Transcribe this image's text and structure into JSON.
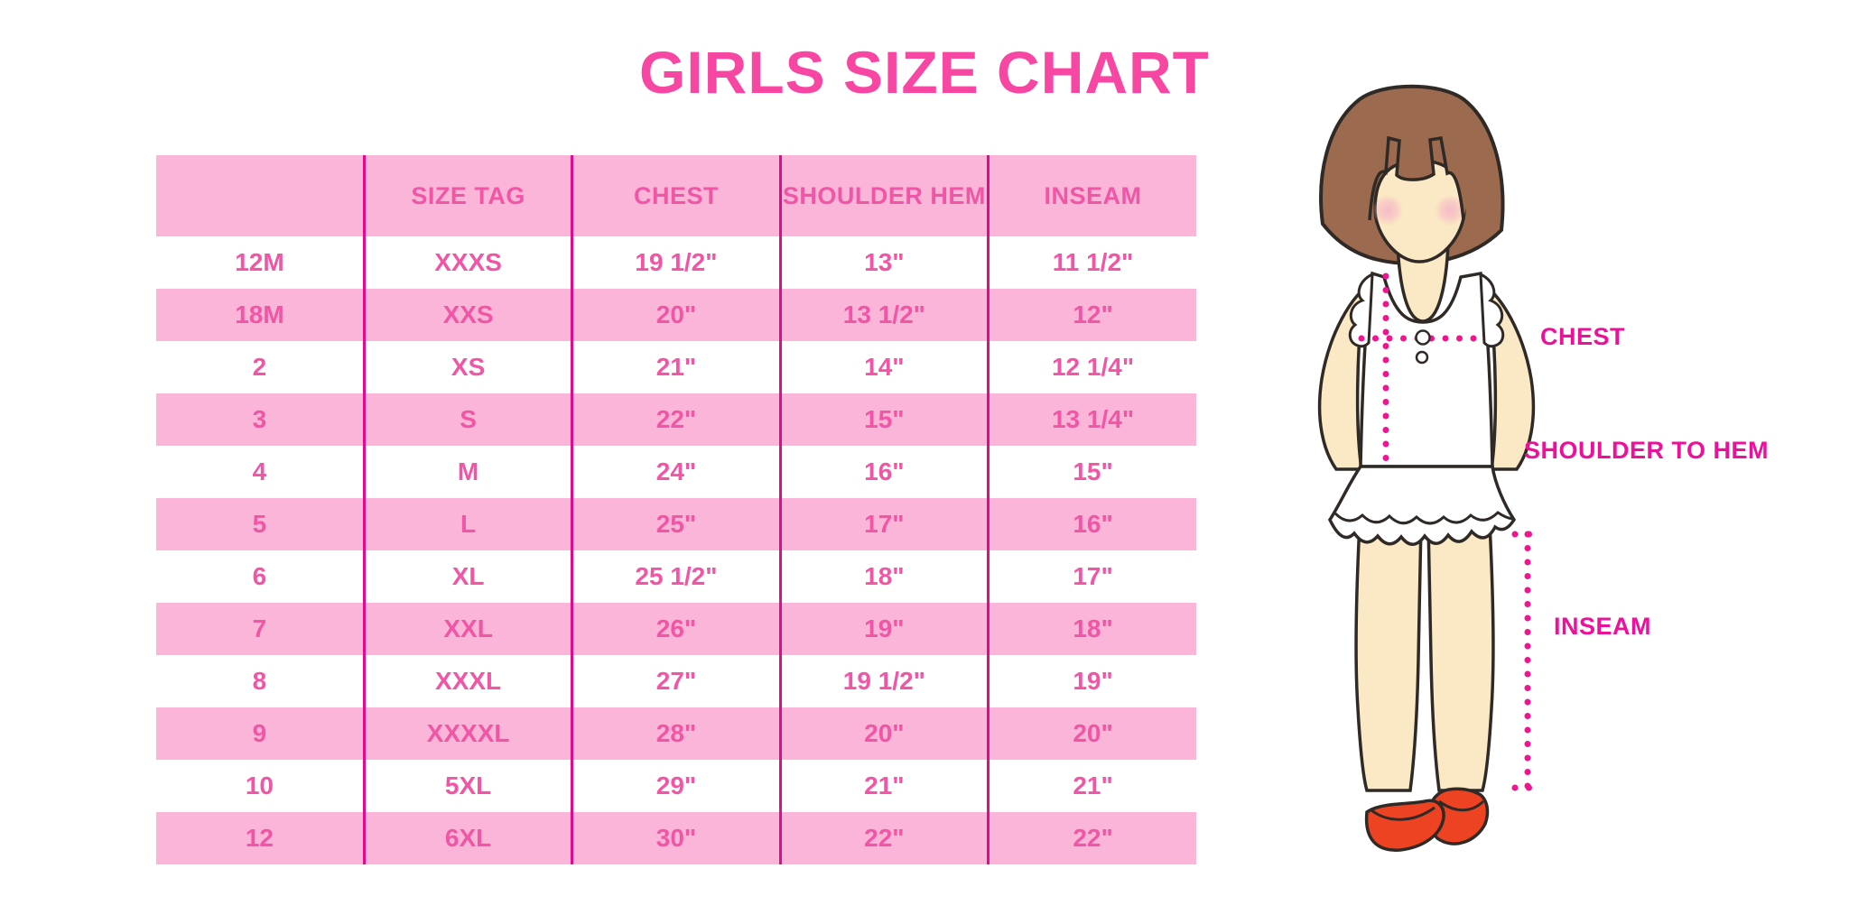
{
  "title": "GIRLS SIZE CHART",
  "chart_data": {
    "type": "table",
    "title": "GIRLS SIZE CHART",
    "columns": [
      "",
      "SIZE TAG",
      "CHEST",
      "SHOULDER HEM",
      "INSEAM"
    ],
    "rows": [
      [
        "12M",
        "XXXS",
        "19 1/2\"",
        "13\"",
        "11 1/2\""
      ],
      [
        "18M",
        "XXS",
        "20\"",
        "13 1/2\"",
        "12\""
      ],
      [
        "2",
        "XS",
        "21\"",
        "14\"",
        "12 1/4\""
      ],
      [
        "3",
        "S",
        "22\"",
        "15\"",
        "13 1/4\""
      ],
      [
        "4",
        "M",
        "24\"",
        "16\"",
        "15\""
      ],
      [
        "5",
        "L",
        "25\"",
        "17\"",
        "16\""
      ],
      [
        "6",
        "XL",
        "25 1/2\"",
        "18\"",
        "17\""
      ],
      [
        "7",
        "XXL",
        "26\"",
        "19\"",
        "18\""
      ],
      [
        "8",
        "XXXL",
        "27\"",
        "19 1/2\"",
        "19\""
      ],
      [
        "9",
        "XXXXL",
        "28\"",
        "20\"",
        "20\""
      ],
      [
        "10",
        "5XL",
        "29\"",
        "21\"",
        "21\""
      ],
      [
        "12",
        "6XL",
        "30\"",
        "22\"",
        "22\""
      ]
    ]
  },
  "diagram": {
    "figure": "toddler girl illustration with measurement guides",
    "labels": {
      "chest": "CHEST",
      "shoulder_to_hem": "SHOULDER TO HEM",
      "inseam": "INSEAM"
    }
  },
  "colors": {
    "title_pink": "#F847A3",
    "table_row_pink": "#FBB5D9",
    "table_text_pink": "#F056A5",
    "divider_magenta": "#DF0D8C",
    "label_magenta": "#EC119B",
    "dotted_line_magenta": "#F0148F",
    "hair_brown": "#9C6A4E",
    "skin": "#FBE8C4",
    "shoe_red": "#EE4323"
  }
}
